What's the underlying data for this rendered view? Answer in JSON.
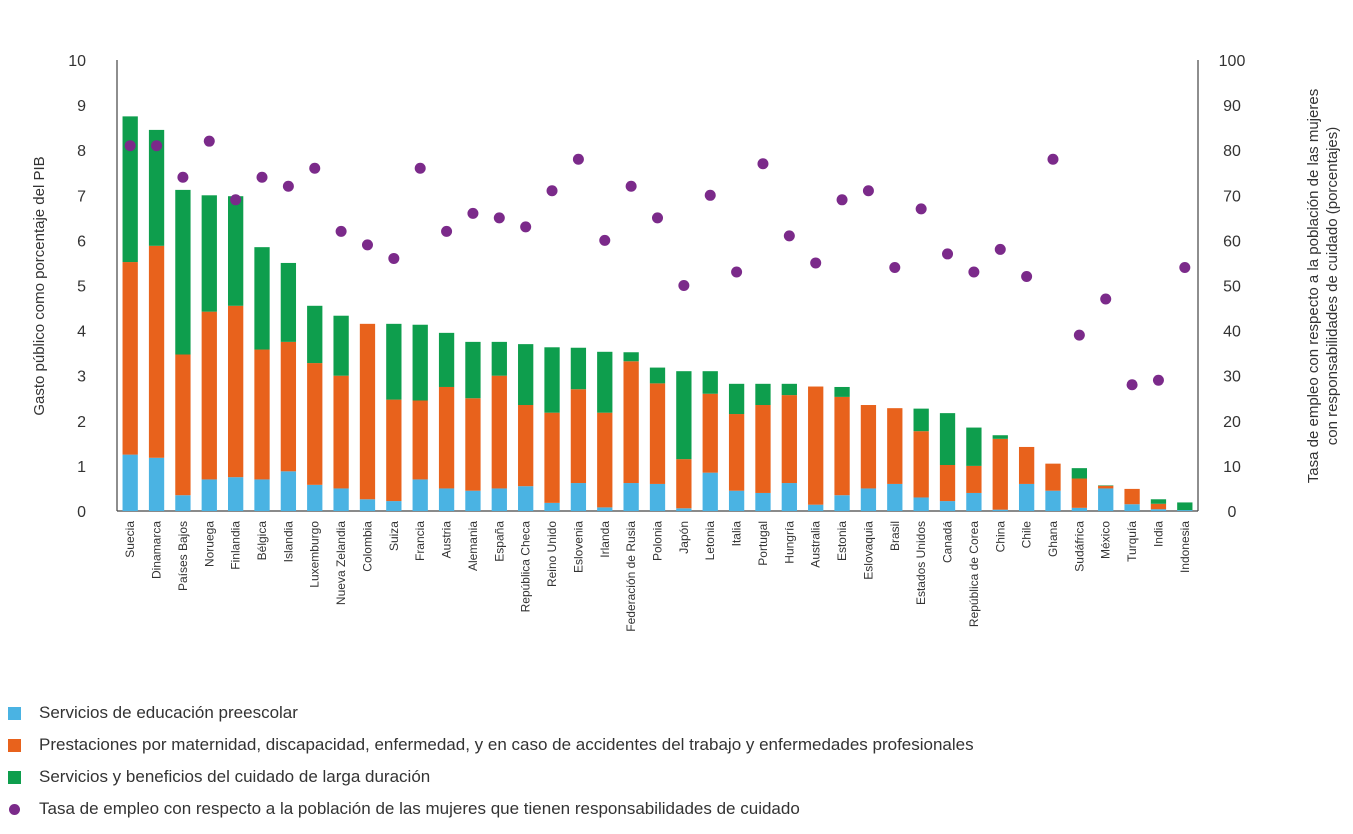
{
  "chart_data": {
    "type": "bar",
    "stacked": true,
    "title": "",
    "xlabel": "",
    "ylabel": "Gasto público como porcentaje del PIB",
    "ylabel_right": "Tasa de empleo con respecto a la población de las mujeres con responsabilidades de cuidado (porcentajes)",
    "ylim": [
      0,
      10
    ],
    "ylim_right": [
      0,
      100
    ],
    "yticks": [
      "0",
      "1",
      "2",
      "3",
      "4",
      "5",
      "6",
      "7",
      "8",
      "9",
      "10"
    ],
    "yticks_right": [
      "0",
      "10",
      "20",
      "30",
      "40",
      "50",
      "60",
      "70",
      "80",
      "90",
      "100"
    ],
    "grid": false,
    "legend_position": "bottom-left",
    "categories": [
      "Suecia",
      "Dinamarca",
      "Países Bajos",
      "Noruega",
      "Finlandia",
      "Bélgica",
      "Islandia",
      "Luxemburgo",
      "Nueva Zelandia",
      "Colombia",
      "Suiza",
      "Francia",
      "Austria",
      "Alemania",
      "España",
      "República Checa",
      "Reino Unido",
      "Eslovenia",
      "Irlanda",
      "Federación de Rusia",
      "Polonia",
      "Japón",
      "Letonia",
      "Italia",
      "Portugal",
      "Hungría",
      "Australia",
      "Estonia",
      "Eslovaquia",
      "Brasil",
      "Estados Unidos",
      "Canadá",
      "República de Corea",
      "China",
      "Chile",
      "Ghana",
      "Sudáfrica",
      "México",
      "Turquía",
      "India",
      "Indonesia"
    ],
    "series": [
      {
        "name": "Servicios de educación preescolar",
        "color": "#4ab3e3",
        "axis": "left",
        "values": [
          1.25,
          1.18,
          0.35,
          0.7,
          0.75,
          0.7,
          0.88,
          0.58,
          0.5,
          0.26,
          0.22,
          0.7,
          0.5,
          0.45,
          0.5,
          0.55,
          0.18,
          0.62,
          0.08,
          0.62,
          0.6,
          0.06,
          0.85,
          0.45,
          0.4,
          0.62,
          0.14,
          0.35,
          0.5,
          0.6,
          0.3,
          0.22,
          0.4,
          0.03,
          0.6,
          0.45,
          0.07,
          0.5,
          0.15,
          0.04,
          0.02
        ]
      },
      {
        "name": "Prestaciones por maternidad, discapacidad, enfermedad, y en caso de accidentes del trabajo y enfermedades profesionales",
        "color": "#e8621c",
        "axis": "left",
        "values": [
          4.27,
          4.7,
          3.12,
          3.72,
          3.8,
          2.88,
          2.87,
          2.7,
          2.5,
          3.89,
          2.25,
          1.75,
          2.25,
          2.05,
          2.5,
          1.8,
          2.0,
          2.08,
          2.1,
          2.7,
          2.23,
          1.09,
          1.75,
          1.7,
          1.95,
          1.95,
          2.62,
          2.18,
          1.85,
          1.68,
          1.47,
          0.8,
          0.6,
          1.57,
          0.82,
          0.6,
          0.65,
          0.06,
          0.34,
          0.12,
          0.0
        ]
      },
      {
        "name": "Servicios y beneficios del cuidado de larga duración",
        "color": "#0e9e4d",
        "axis": "left",
        "values": [
          3.23,
          2.57,
          3.65,
          2.58,
          2.43,
          2.27,
          1.75,
          1.27,
          1.33,
          0.0,
          1.68,
          1.68,
          1.2,
          1.25,
          0.75,
          1.35,
          1.45,
          0.92,
          1.35,
          0.2,
          0.35,
          1.95,
          0.5,
          0.67,
          0.47,
          0.25,
          0.0,
          0.22,
          0.0,
          0.0,
          0.5,
          1.15,
          0.85,
          0.08,
          0.0,
          0.0,
          0.23,
          0.01,
          0.0,
          0.1,
          0.17
        ]
      },
      {
        "name": "Tasa de empleo con respecto a la población de las mujeres que tienen responsabilidades de cuidado",
        "color": "#7b2a8a",
        "axis": "right",
        "type": "scatter",
        "values": [
          81,
          81,
          74,
          82,
          69,
          74,
          72,
          76,
          62,
          59,
          56,
          76,
          62,
          66,
          65,
          63,
          71,
          78,
          60,
          72,
          65,
          50,
          70,
          53,
          77,
          61,
          55,
          69,
          71,
          54,
          67,
          57,
          53,
          58,
          52,
          78,
          39,
          47,
          28,
          29,
          54
        ]
      }
    ]
  }
}
